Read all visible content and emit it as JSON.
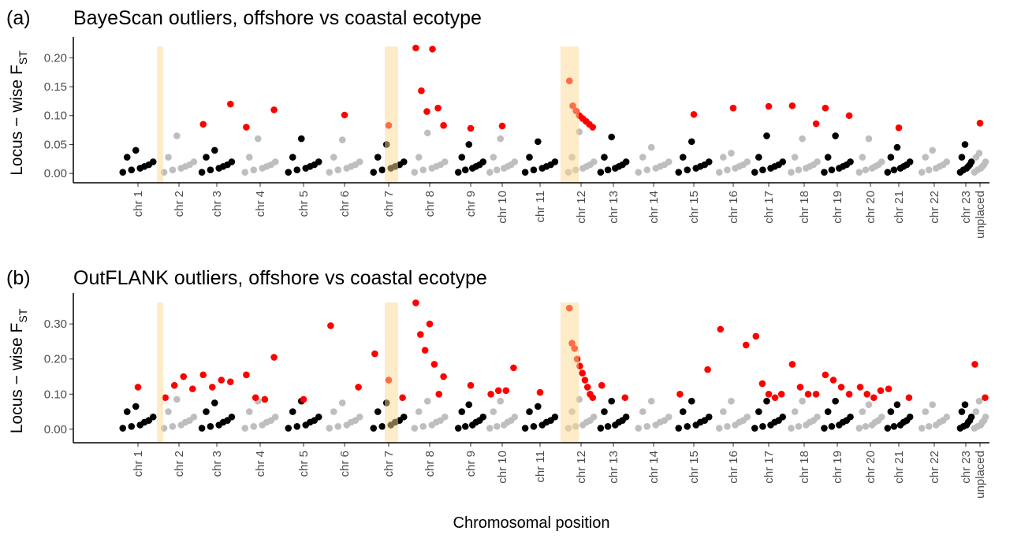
{
  "chart_data": [
    {
      "type": "scatter",
      "panel": "(a)",
      "title": "BayeScan outliers, offshore vs coastal ecotype",
      "y_label": "Locus − wise F",
      "y_label_sub": "ST",
      "categories": [
        "chr 1",
        "chr 2",
        "chr 3",
        "chr 4",
        "chr 5",
        "chr 6",
        "chr 7",
        "chr 8",
        "chr 9",
        "chr 10",
        "chr 11",
        "chr 12",
        "chr 13",
        "chr 14",
        "chr 15",
        "chr 16",
        "chr 17",
        "chr 18",
        "chr 19",
        "chr 20",
        "chr 21",
        "chr 22",
        "chr 23",
        "unplaced"
      ],
      "colors": [
        "#000000",
        "#bebebe"
      ],
      "outlier_color": "#ff0000",
      "ylim": [
        -0.008,
        0.225
      ],
      "yticks": [
        {
          "value": 0,
          "label": "0.00"
        },
        {
          "value": 0.05,
          "label": "0.05"
        },
        {
          "value": 0.1,
          "label": "0.10"
        },
        {
          "value": 0.15,
          "label": "0.15"
        },
        {
          "value": 0.2,
          "label": "0.20"
        }
      ],
      "background": [
        [
          0.002,
          0.012,
          0.006,
          0.02,
          0.009,
          0.028,
          0.015,
          0.04
        ],
        [
          0.002,
          0.012,
          0.006,
          0.02,
          0.009,
          0.028,
          0.015,
          0.065
        ],
        [
          0.002,
          0.012,
          0.006,
          0.02,
          0.009,
          0.028,
          0.015,
          0.04
        ],
        [
          0.002,
          0.012,
          0.006,
          0.02,
          0.009,
          0.028,
          0.015,
          0.06
        ],
        [
          0.002,
          0.012,
          0.006,
          0.02,
          0.009,
          0.028,
          0.015,
          0.06
        ],
        [
          0.002,
          0.012,
          0.006,
          0.02,
          0.009,
          0.028,
          0.015,
          0.058
        ],
        [
          0.002,
          0.012,
          0.006,
          0.02,
          0.009,
          0.028,
          0.015,
          0.05
        ],
        [
          0.002,
          0.012,
          0.006,
          0.02,
          0.009,
          0.028,
          0.015,
          0.07
        ],
        [
          0.002,
          0.012,
          0.006,
          0.02,
          0.009,
          0.028,
          0.015,
          0.05
        ],
        [
          0.002,
          0.012,
          0.006,
          0.02,
          0.009,
          0.028,
          0.015,
          0.06
        ],
        [
          0.002,
          0.012,
          0.006,
          0.02,
          0.009,
          0.028,
          0.015,
          0.055
        ],
        [
          0.002,
          0.012,
          0.006,
          0.02,
          0.009,
          0.028,
          0.015,
          0.072
        ],
        [
          0.002,
          0.012,
          0.006,
          0.02,
          0.009,
          0.028,
          0.015,
          0.063
        ],
        [
          0.002,
          0.012,
          0.006,
          0.02,
          0.009,
          0.028,
          0.015,
          0.045
        ],
        [
          0.002,
          0.012,
          0.006,
          0.02,
          0.009,
          0.028,
          0.015,
          0.055
        ],
        [
          0.002,
          0.012,
          0.006,
          0.02,
          0.009,
          0.028,
          0.015,
          0.035
        ],
        [
          0.002,
          0.012,
          0.006,
          0.02,
          0.009,
          0.028,
          0.015,
          0.065
        ],
        [
          0.002,
          0.012,
          0.006,
          0.02,
          0.009,
          0.028,
          0.015,
          0.06
        ],
        [
          0.002,
          0.012,
          0.006,
          0.02,
          0.009,
          0.028,
          0.015,
          0.065
        ],
        [
          0.002,
          0.012,
          0.006,
          0.02,
          0.009,
          0.028,
          0.015,
          0.06
        ],
        [
          0.002,
          0.012,
          0.006,
          0.02,
          0.009,
          0.028,
          0.015,
          0.045
        ],
        [
          0.002,
          0.012,
          0.006,
          0.02,
          0.009,
          0.028,
          0.015,
          0.04
        ],
        [
          0.002,
          0.012,
          0.006,
          0.02,
          0.009,
          0.028,
          0.015,
          0.05
        ],
        [
          0.002,
          0.012,
          0.006,
          0.02,
          0.009,
          0.028,
          0.015,
          0.035
        ]
      ],
      "outliers": [
        [],
        [],
        [
          0.085,
          0.12
        ],
        [
          0.08,
          0.11
        ],
        [],
        [
          0.101
        ],
        [
          0.083
        ],
        [
          0.217,
          0.143,
          0.107,
          0.215,
          0.113,
          0.083
        ],
        [
          0.078
        ],
        [
          0.082
        ],
        [],
        [
          0.16,
          0.117,
          0.108,
          0.1,
          0.095,
          0.09,
          0.085,
          0.08
        ],
        [],
        [],
        [
          0.102
        ],
        [
          0.113
        ],
        [
          0.116
        ],
        [
          0.117,
          0.086
        ],
        [
          0.113,
          0.1
        ],
        [],
        [
          0.079
        ],
        [],
        [],
        [
          0.087
        ]
      ]
    },
    {
      "type": "scatter",
      "panel": "(b)",
      "title": "OutFLANK outliers, offshore vs coastal ecotype",
      "y_label": "Locus − wise F",
      "y_label_sub": "ST",
      "x_label": "Chromosomal position",
      "categories": [
        "chr 1",
        "chr 2",
        "chr 3",
        "chr 4",
        "chr 5",
        "chr 6",
        "chr 7",
        "chr 8",
        "chr 9",
        "chr 10",
        "chr 11",
        "chr 12",
        "chr 13",
        "chr 14",
        "chr 15",
        "chr 16",
        "chr 17",
        "chr 18",
        "chr 19",
        "chr 20",
        "chr 21",
        "chr 22",
        "chr 23",
        "unplaced"
      ],
      "colors": [
        "#000000",
        "#bebebe"
      ],
      "outlier_color": "#ff0000",
      "ylim": [
        -0.025,
        0.37
      ],
      "yticks": [
        {
          "value": 0,
          "label": "0.00"
        },
        {
          "value": 0.1,
          "label": "0.10"
        },
        {
          "value": 0.2,
          "label": "0.20"
        },
        {
          "value": 0.3,
          "label": "0.30"
        }
      ],
      "background": [
        [
          0.003,
          0.02,
          0.008,
          0.035,
          0.012,
          0.05,
          0.025,
          0.065
        ],
        [
          0.003,
          0.02,
          0.008,
          0.035,
          0.012,
          0.05,
          0.025,
          0.085
        ],
        [
          0.003,
          0.02,
          0.008,
          0.035,
          0.012,
          0.05,
          0.025,
          0.075
        ],
        [
          0.003,
          0.02,
          0.008,
          0.035,
          0.012,
          0.05,
          0.025,
          0.08
        ],
        [
          0.003,
          0.02,
          0.008,
          0.035,
          0.012,
          0.05,
          0.025,
          0.08
        ],
        [
          0.003,
          0.02,
          0.008,
          0.035,
          0.012,
          0.05,
          0.025,
          0.075
        ],
        [
          0.003,
          0.02,
          0.008,
          0.035,
          0.012,
          0.05,
          0.025,
          0.075
        ],
        [
          0.003,
          0.02,
          0.008,
          0.035,
          0.012,
          0.05,
          0.025,
          0.08
        ],
        [
          0.003,
          0.02,
          0.008,
          0.035,
          0.012,
          0.05,
          0.025,
          0.07
        ],
        [
          0.003,
          0.02,
          0.008,
          0.035,
          0.012,
          0.05,
          0.025,
          0.08
        ],
        [
          0.003,
          0.02,
          0.008,
          0.035,
          0.012,
          0.05,
          0.025,
          0.065
        ],
        [
          0.003,
          0.02,
          0.008,
          0.035,
          0.012,
          0.05,
          0.025,
          0.085
        ],
        [
          0.003,
          0.02,
          0.008,
          0.035,
          0.012,
          0.05,
          0.025,
          0.08
        ],
        [
          0.003,
          0.02,
          0.008,
          0.035,
          0.012,
          0.05,
          0.025,
          0.08
        ],
        [
          0.003,
          0.02,
          0.008,
          0.035,
          0.012,
          0.05,
          0.025,
          0.08
        ],
        [
          0.003,
          0.02,
          0.008,
          0.035,
          0.012,
          0.05,
          0.025,
          0.08
        ],
        [
          0.003,
          0.02,
          0.008,
          0.035,
          0.012,
          0.05,
          0.025,
          0.08
        ],
        [
          0.003,
          0.02,
          0.008,
          0.035,
          0.012,
          0.05,
          0.025,
          0.08
        ],
        [
          0.003,
          0.02,
          0.008,
          0.035,
          0.012,
          0.05,
          0.025,
          0.08
        ],
        [
          0.003,
          0.02,
          0.008,
          0.035,
          0.012,
          0.05,
          0.025,
          0.07
        ],
        [
          0.003,
          0.02,
          0.008,
          0.035,
          0.012,
          0.05,
          0.025,
          0.07
        ],
        [
          0.003,
          0.02,
          0.008,
          0.035,
          0.012,
          0.05,
          0.025,
          0.07
        ],
        [
          0.003,
          0.02,
          0.008,
          0.035,
          0.012,
          0.05,
          0.025,
          0.07
        ],
        [
          0.003,
          0.02,
          0.008,
          0.035,
          0.012,
          0.05,
          0.025,
          0.08
        ]
      ],
      "outliers": [
        [
          0.12
        ],
        [
          0.09,
          0.125,
          0.15,
          0.115
        ],
        [
          0.155,
          0.12,
          0.14,
          0.135
        ],
        [
          0.155,
          0.09,
          0.085,
          0.205
        ],
        [
          0.085
        ],
        [
          0.295,
          0.12
        ],
        [
          0.215,
          0.14,
          0.09
        ],
        [
          0.36,
          0.27,
          0.225,
          0.3,
          0.185,
          0.1,
          0.15
        ],
        [
          0.125
        ],
        [
          0.1,
          0.11,
          0.11,
          0.175
        ],
        [
          0.105
        ],
        [
          0.345,
          0.245,
          0.23,
          0.2,
          0.18,
          0.16,
          0.14,
          0.12,
          0.1,
          0.09
        ],
        [
          0.125,
          0.09
        ],
        [],
        [
          0.1,
          0.17
        ],
        [
          0.285,
          0.24
        ],
        [
          0.265,
          0.13,
          0.1,
          0.09,
          0.1
        ],
        [
          0.185,
          0.12,
          0.1,
          0.1
        ],
        [
          0.155,
          0.14,
          0.12,
          0.1
        ],
        [
          0.12,
          0.1,
          0.09,
          0.11
        ],
        [
          0.115,
          0.09
        ],
        [],
        [],
        [
          0.185,
          0.09
        ]
      ]
    }
  ]
}
